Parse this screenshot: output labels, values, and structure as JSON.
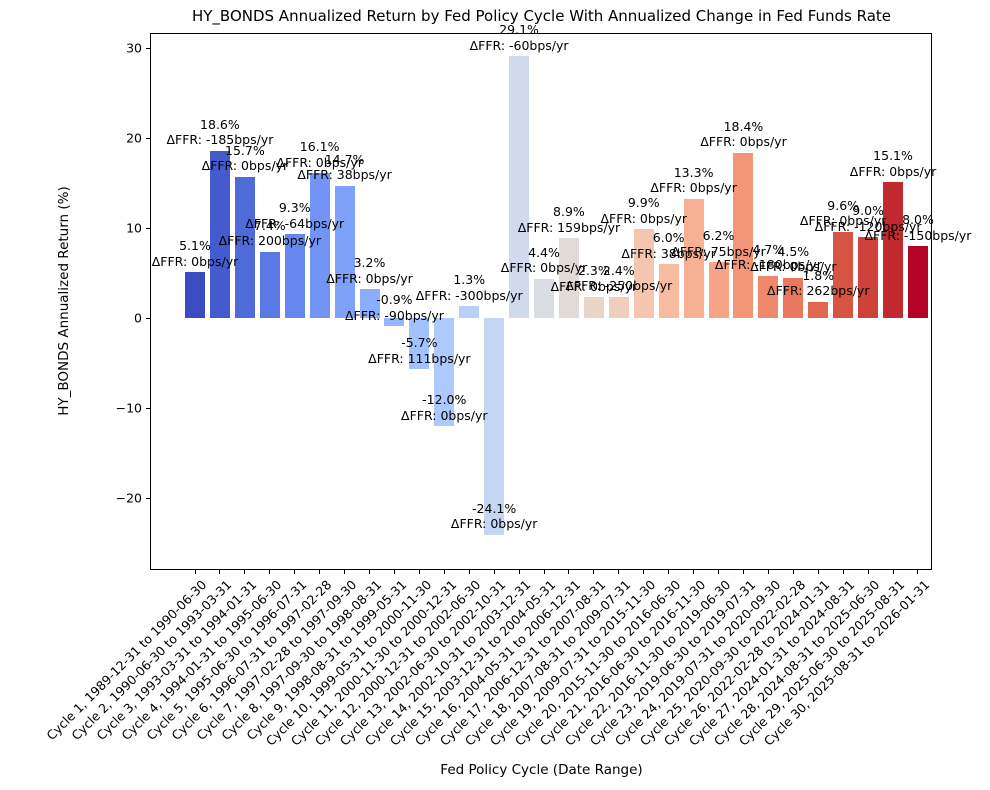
{
  "figure": {
    "background": "#ffffff"
  },
  "chart_data": {
    "type": "bar",
    "title": "HY_BONDS Annualized Return by Fed Policy Cycle With Annualized Change in Fed Funds Rate",
    "xlabel": "Fed Policy Cycle (Date Range)",
    "ylabel": "HY_BONDS Annualized Return (%)",
    "colormap": "coolwarm",
    "grid": false,
    "legend_position": "none",
    "ylim": [
      -28.0,
      31.7
    ],
    "yticks": {
      "values": [
        -20,
        -10,
        0,
        10,
        20,
        30
      ],
      "labels": [
        "−20",
        "−10",
        "0",
        "10",
        "20",
        "30"
      ]
    },
    "categories": [
      "Cycle 1, 1989-12-31 to 1990-06-30",
      "Cycle 2, 1990-06-30 to 1993-03-31",
      "Cycle 3, 1993-03-31 to 1994-01-31",
      "Cycle 4, 1994-01-31 to 1995-06-30",
      "Cycle 5, 1995-06-30 to 1996-07-31",
      "Cycle 6, 1996-07-31 to 1997-02-28",
      "Cycle 7, 1997-02-28 to 1997-09-30",
      "Cycle 8, 1997-09-30 to 1998-08-31",
      "Cycle 9, 1998-08-31 to 1999-05-31",
      "Cycle 10, 1999-05-31 to 2000-11-30",
      "Cycle 11, 2000-11-30 to 2000-12-31",
      "Cycle 12, 2000-12-31 to 2002-06-30",
      "Cycle 13, 2002-06-30 to 2002-10-31",
      "Cycle 14, 2002-10-31 to 2003-12-31",
      "Cycle 15, 2003-12-31 to 2004-05-31",
      "Cycle 16, 2004-05-31 to 2006-12-31",
      "Cycle 17, 2006-12-31 to 2007-08-31",
      "Cycle 18, 2007-08-31 to 2009-07-31",
      "Cycle 19, 2009-07-31 to 2015-11-30",
      "Cycle 20, 2015-11-30 to 2016-06-30",
      "Cycle 21, 2016-06-30 to 2016-11-30",
      "Cycle 22, 2016-11-30 to 2019-06-30",
      "Cycle 23, 2019-06-30 to 2019-07-31",
      "Cycle 24, 2019-07-31 to 2020-09-30",
      "Cycle 25, 2020-09-30 to 2022-02-28",
      "Cycle 26, 2022-02-28 to 2024-01-31",
      "Cycle 27, 2024-01-31 to 2024-08-31",
      "Cycle 28, 2024-08-31 to 2025-06-30",
      "Cycle 29, 2025-06-30 to 2025-08-31",
      "Cycle 30, 2025-08-31 to 2026-01-31"
    ],
    "values": [
      5.1,
      18.6,
      15.7,
      7.4,
      9.3,
      16.1,
      14.7,
      3.2,
      -0.9,
      -5.7,
      -12.0,
      1.3,
      -24.1,
      29.1,
      4.4,
      8.9,
      2.3,
      2.4,
      9.9,
      6.0,
      13.3,
      6.2,
      18.4,
      4.7,
      4.5,
      1.8,
      9.6,
      9.0,
      15.1,
      8.0
    ],
    "value_labels": [
      "5.1%",
      "18.6%",
      "15.7%",
      "7.4%",
      "9.3%",
      "16.1%",
      "14.7%",
      "3.2%",
      "-0.9%",
      "-5.7%",
      "-12.0%",
      "1.3%",
      "-24.1%",
      "29.1%",
      "4.4%",
      "8.9%",
      "2.3%",
      "2.4%",
      "9.9%",
      "6.0%",
      "13.3%",
      "6.2%",
      "18.4%",
      "4.7%",
      "4.5%",
      "1.8%",
      "9.6%",
      "9.0%",
      "15.1%",
      "8.0%"
    ],
    "ffr_labels": [
      "ΔFFR: 0bps/yr",
      "ΔFFR: -185bps/yr",
      "ΔFFR: 0bps/yr",
      "ΔFFR: 200bps/yr",
      "ΔFFR: -64bps/yr",
      "ΔFFR: 0bps/yr",
      "ΔFFR: 38bps/yr",
      "ΔFFR: 0bps/yr",
      "ΔFFR: -90bps/yr",
      "ΔFFR: 111bps/yr",
      "ΔFFR: 0bps/yr",
      "ΔFFR: -300bps/yr",
      "ΔFFR: 0bps/yr",
      "ΔFFR: -60bps/yr",
      "ΔFFR: 0bps/yr",
      "ΔFFR: 159bps/yr",
      "ΔFFR: 0bps/yr",
      "ΔFFR: -250bps/yr",
      "ΔFFR: 0bps/yr",
      "ΔFFR: 38bps/yr",
      "ΔFFR: 0bps/yr",
      "ΔFFR: 75bps/yr",
      "ΔFFR: 0bps/yr",
      "ΔFFR: -180bps/yr",
      "ΔFFR: 0bps/yr",
      "ΔFFR: 262bps/yr",
      "ΔFFR: 0bps/yr",
      "ΔFFR: -120bps/yr",
      "ΔFFR: 0bps/yr",
      "ΔFFR: -150bps/yr"
    ],
    "colors": [
      "#3b4cc0",
      "#445bcd",
      "#4f6bd9",
      "#5a79e4",
      "#6687ed",
      "#7294f4",
      "#7ea1f9",
      "#8aadfd",
      "#96b7ff",
      "#a2c1ff",
      "#aec9fd",
      "#b9d1f8",
      "#c4d6f3",
      "#cfdaeb",
      "#d9dce2",
      "#e1dad6",
      "#ead5c9",
      "#f0cebc",
      "#f4c5af",
      "#f7bba0",
      "#f7b093",
      "#f6a485",
      "#f39678",
      "#ef886a",
      "#e9785e",
      "#e16752",
      "#d85545",
      "#cd423a",
      "#c12a2f",
      "#b40426"
    ]
  }
}
